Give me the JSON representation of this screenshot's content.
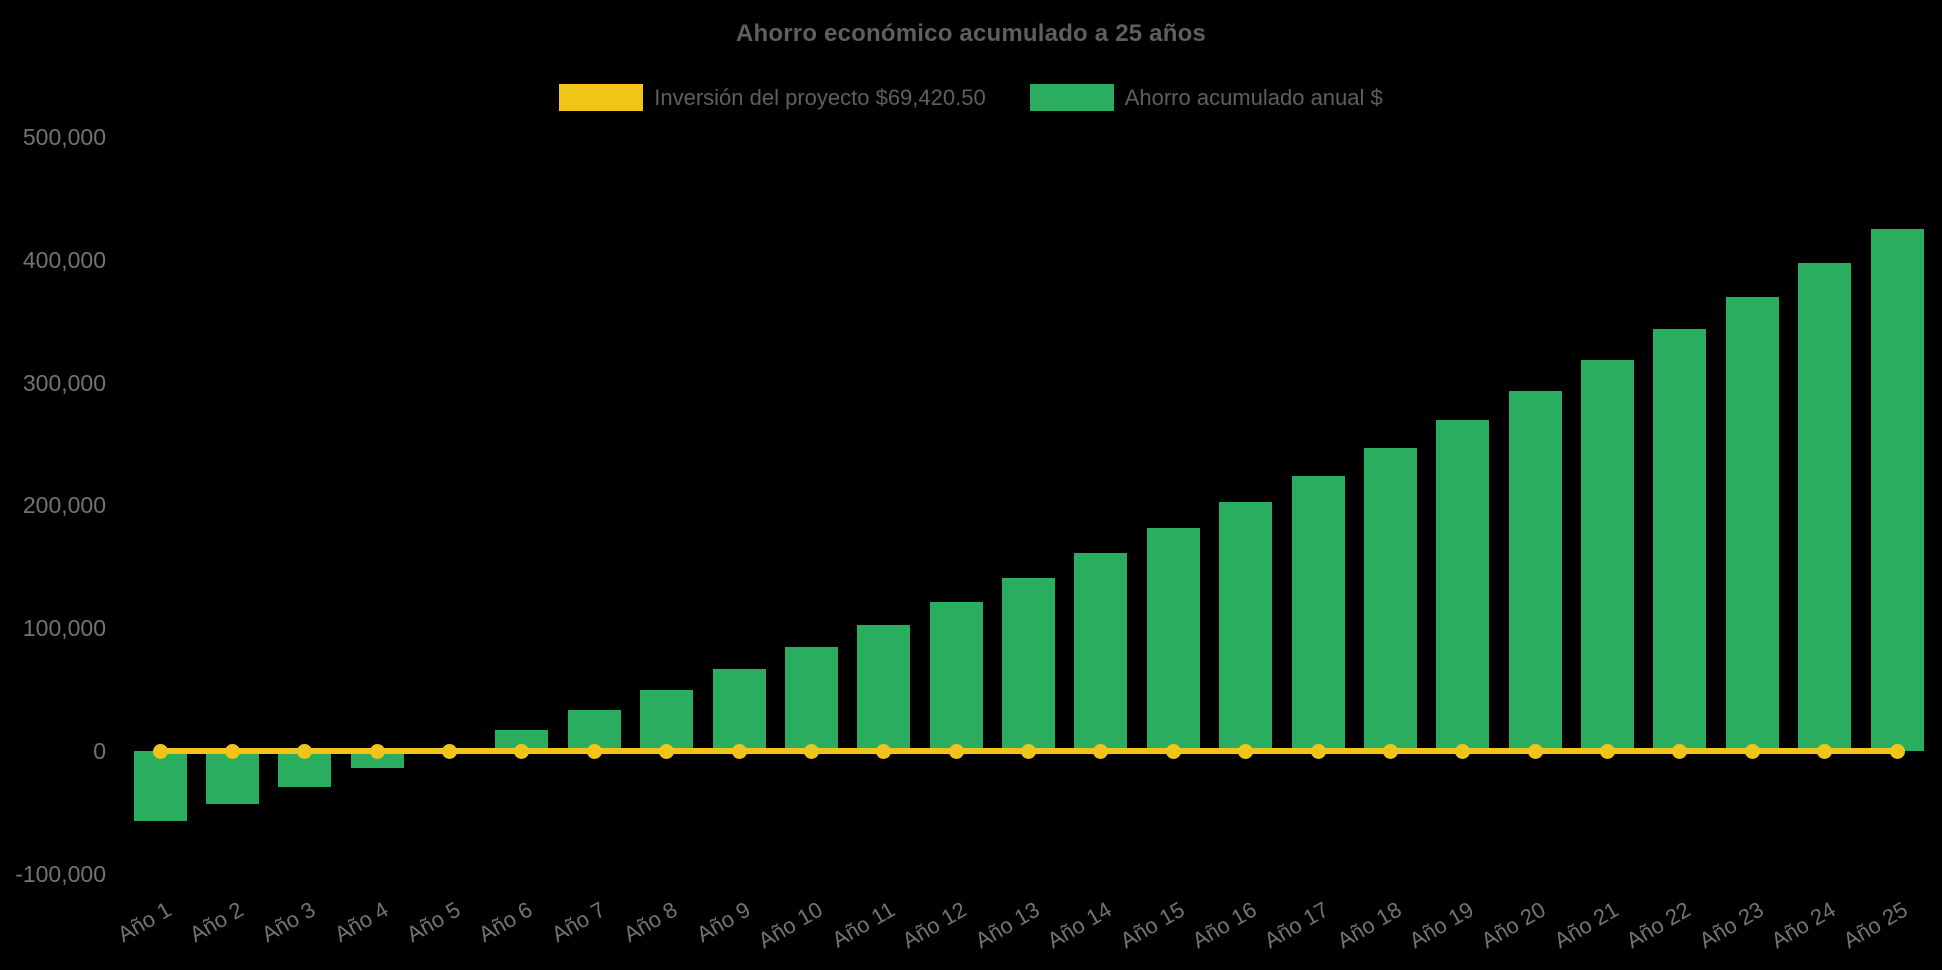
{
  "chart_data": {
    "type": "bar",
    "title": "Ahorro económico acumulado a 25 años",
    "categories": [
      "Año 1",
      "Año 2",
      "Año 3",
      "Año 4",
      "Año 5",
      "Año 6",
      "Año 7",
      "Año 8",
      "Año 9",
      "Año 10",
      "Año 11",
      "Año 12",
      "Año 13",
      "Año 14",
      "Año 15",
      "Año 16",
      "Año 17",
      "Año 18",
      "Año 19",
      "Año 20",
      "Año 21",
      "Año 22",
      "Año 23",
      "Año 24",
      "Año 25"
    ],
    "series": [
      {
        "name": "Inversión del proyecto $69,420.50",
        "type": "line",
        "color": "#F0C419",
        "values": [
          0,
          0,
          0,
          0,
          0,
          0,
          0,
          0,
          0,
          0,
          0,
          0,
          0,
          0,
          0,
          0,
          0,
          0,
          0,
          0,
          0,
          0,
          0,
          0,
          0
        ]
      },
      {
        "name": "Ahorro acumulado anual $",
        "type": "bar",
        "color": "#2BAD60",
        "values": [
          -57000,
          -43000,
          -29000,
          -14000,
          1000,
          17000,
          33500,
          50000,
          67000,
          85000,
          103000,
          121500,
          141000,
          161000,
          181500,
          202500,
          224000,
          246500,
          269500,
          293500,
          318000,
          343500,
          369500,
          397000,
          425000
        ]
      }
    ],
    "xlabel": "",
    "ylabel": "",
    "ylim": [
      -100000,
      500000
    ],
    "yticks": [
      500000,
      400000,
      300000,
      200000,
      100000,
      0,
      -100000
    ],
    "ytick_labels": [
      "500,000",
      "400,000",
      "300,000",
      "200,000",
      "100,000",
      "0",
      "-100,000"
    ],
    "grid": false,
    "legend_position": "top",
    "background": "#000000",
    "tick_text_color": "#717377",
    "title_text_color": "#5E5F62"
  }
}
